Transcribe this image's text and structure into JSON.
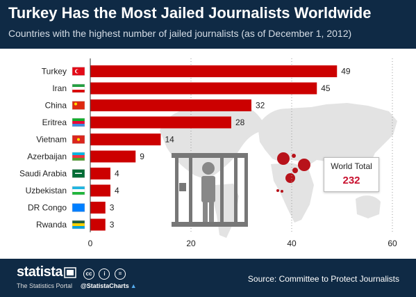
{
  "header": {
    "title": "Turkey Has the Most Jailed Journalists Worldwide",
    "subtitle": "Countries with the highest number of jailed journalists (as of December 1, 2012)"
  },
  "chart_data": {
    "type": "bar",
    "orientation": "horizontal",
    "categories": [
      "Turkey",
      "Iran",
      "China",
      "Eritrea",
      "Vietnam",
      "Azerbaijan",
      "Saudi Arabia",
      "Uzbekistan",
      "DR Congo",
      "Rwanda"
    ],
    "values": [
      49,
      45,
      32,
      28,
      14,
      9,
      4,
      4,
      3,
      3
    ],
    "flags": [
      "turkey-flag-icon",
      "iran-flag-icon",
      "china-flag-icon",
      "eritrea-flag-icon",
      "vietnam-flag-icon",
      "azerbaijan-flag-icon",
      "saudi-arabia-flag-icon",
      "uzbekistan-flag-icon",
      "dr-congo-flag-icon",
      "rwanda-flag-icon"
    ],
    "xlim": [
      0,
      60
    ],
    "xticks": [
      0,
      20,
      40,
      60
    ],
    "grid": true,
    "bar_color": "#cc0000",
    "title": "Turkey Has the Most Jailed Journalists Worldwide",
    "xlabel": "",
    "ylabel": ""
  },
  "world_total": {
    "label": "World Total",
    "value": "232"
  },
  "footer": {
    "brand": "statista",
    "tagline": "The Statistics Portal",
    "license_icons": [
      "cc",
      "i",
      "="
    ],
    "handle": "@StatistaCharts",
    "source": "Source: Committee to Protect Journalists"
  },
  "colors": {
    "header_bg": "#0f2a45",
    "bar": "#cc0000",
    "accent": "#c8102e",
    "map": "#e3e3e3",
    "bubble": "#b8121a"
  }
}
